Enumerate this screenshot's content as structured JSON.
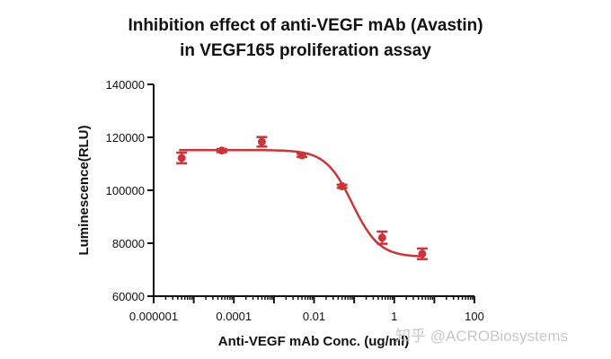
{
  "chart_data": {
    "type": "scatter",
    "title_lines": [
      "Inhibition effect of anti-VEGF mAb (Avastin)",
      "in VEGF165 proliferation assay"
    ],
    "xlabel": "Anti-VEGF mAb Conc. (ug/ml)",
    "ylabel": "Luminescence(RLU)",
    "x_scale": "log",
    "xlim": [
      1e-06,
      100
    ],
    "ylim": [
      60000,
      140000
    ],
    "x_ticks": [
      "0.000001",
      "0.0001",
      "0.01",
      "1",
      "100"
    ],
    "x_tick_values": [
      1e-06,
      0.0001,
      0.01,
      1,
      100
    ],
    "y_ticks": [
      "60000",
      "80000",
      "100000",
      "120000",
      "140000"
    ],
    "y_tick_values": [
      60000,
      80000,
      100000,
      120000,
      140000
    ],
    "grid": false,
    "color": "#c8363a",
    "points": {
      "x": [
        5e-06,
        5e-05,
        0.0005,
        0.005,
        0.05,
        0.5,
        5
      ],
      "y": [
        112200,
        115000,
        118300,
        113200,
        101500,
        82100,
        76000
      ],
      "err": [
        2000,
        600,
        1800,
        600,
        600,
        2300,
        2000
      ]
    },
    "fit": {
      "model": "4PL",
      "top": 115200,
      "bottom": 74800,
      "ic50": 0.09,
      "hill": 1.3
    }
  },
  "watermark": "知乎 @ACROBiosystems"
}
